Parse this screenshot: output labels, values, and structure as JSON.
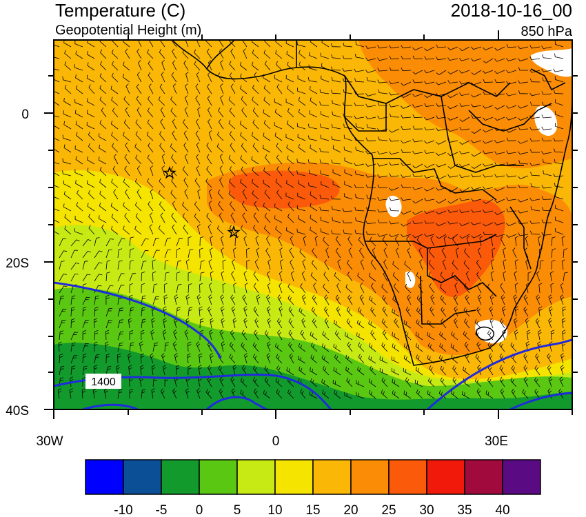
{
  "header": {
    "title": "Temperature (C)",
    "subtitle": "Geopotential Height (m)",
    "datetime": "2018-10-16_00",
    "level": "850 hPa"
  },
  "axes": {
    "y_labels": [
      "0",
      "20S",
      "40S"
    ],
    "x_labels": [
      "30W",
      "0",
      "30E"
    ]
  },
  "contour": {
    "label": "1400",
    "color": "#1f2bdc"
  },
  "colorbar": {
    "colors": [
      "#0000ff",
      "#0b4f96",
      "#129a2c",
      "#5ac712",
      "#c8ea14",
      "#f5e400",
      "#fbb705",
      "#fb8c05",
      "#fb5a0a",
      "#f0190a",
      "#a00a3c",
      "#5a0a82"
    ],
    "tick_labels": [
      "-10",
      "-5",
      "0",
      "5",
      "10",
      "15",
      "20",
      "25",
      "30",
      "35",
      "40"
    ]
  },
  "markers": {
    "symbol": "star",
    "count": 2
  }
}
